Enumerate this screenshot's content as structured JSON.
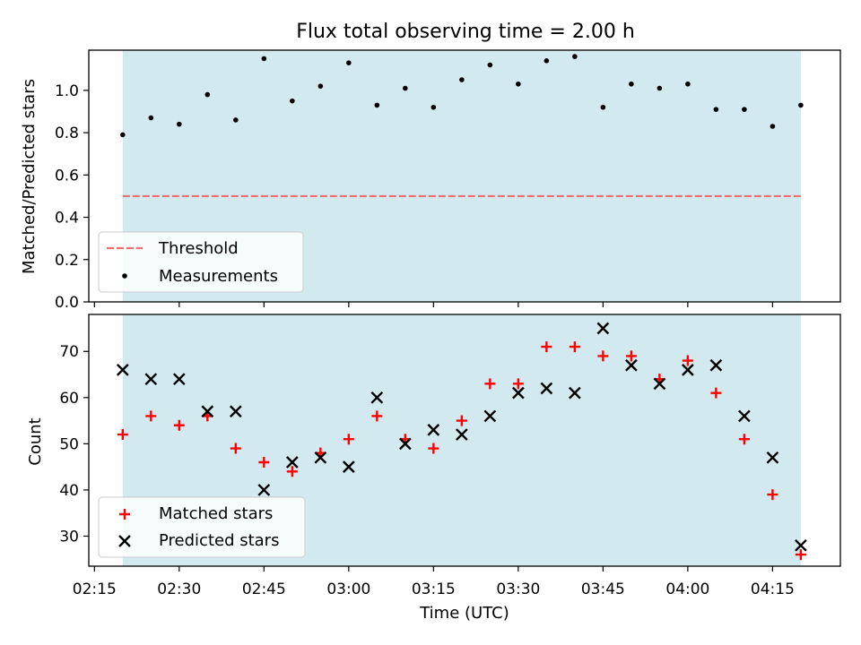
{
  "title": "Flux total observing time = 2.00 h",
  "colors": {
    "shade": "#d3e9f0",
    "threshold": "#f07070",
    "measurement": "#000000",
    "matched": "#ff0000",
    "predicted": "#000000"
  },
  "chart_data": [
    {
      "type": "scatter",
      "ylabel": "Matched/Predicted stars",
      "ylim": [
        0,
        1.19
      ],
      "yticks": [
        "0.0",
        "0.2",
        "0.4",
        "0.6",
        "0.8",
        "1.0"
      ],
      "shaded_range": [
        "02:20",
        "04:20"
      ],
      "threshold": {
        "name": "Threshold",
        "value": 0.5,
        "x": [
          "02:20",
          "04:20"
        ]
      },
      "series": [
        {
          "name": "Measurements",
          "x": [
            "02:20",
            "02:25",
            "02:30",
            "02:35",
            "02:40",
            "02:45",
            "02:50",
            "02:55",
            "03:00",
            "03:05",
            "03:10",
            "03:15",
            "03:20",
            "03:25",
            "03:30",
            "03:35",
            "03:40",
            "03:45",
            "03:50",
            "03:55",
            "04:00",
            "04:05",
            "04:10",
            "04:15",
            "04:20"
          ],
          "y": [
            0.79,
            0.87,
            0.84,
            0.98,
            0.86,
            1.15,
            0.95,
            1.02,
            1.13,
            0.93,
            1.01,
            0.92,
            1.05,
            1.12,
            1.03,
            1.14,
            1.16,
            0.92,
            1.03,
            1.01,
            1.03,
            0.91,
            0.91,
            0.83,
            0.93
          ]
        }
      ],
      "legend": "lower-left",
      "grid": false
    },
    {
      "type": "scatter",
      "xlabel": "Time (UTC)",
      "ylabel": "Count",
      "ylim": [
        23.5,
        78
      ],
      "yticks": [
        "30",
        "40",
        "50",
        "60",
        "70"
      ],
      "xticks": [
        "02:15",
        "02:30",
        "02:45",
        "03:00",
        "03:15",
        "03:30",
        "03:45",
        "04:00",
        "04:15"
      ],
      "xlim": [
        "02:14",
        "04:27"
      ],
      "shaded_range": [
        "02:20",
        "04:20"
      ],
      "series": [
        {
          "name": "Matched stars",
          "x": [
            "02:20",
            "02:25",
            "02:30",
            "02:35",
            "02:40",
            "02:45",
            "02:50",
            "02:55",
            "03:00",
            "03:05",
            "03:10",
            "03:15",
            "03:20",
            "03:25",
            "03:30",
            "03:35",
            "03:40",
            "03:45",
            "03:50",
            "03:55",
            "04:00",
            "04:05",
            "04:10",
            "04:15",
            "04:20"
          ],
          "y": [
            52,
            56,
            54,
            56,
            49,
            46,
            44,
            48,
            51,
            56,
            51,
            49,
            55,
            63,
            63,
            71,
            71,
            69,
            69,
            64,
            68,
            61,
            51,
            39,
            26
          ]
        },
        {
          "name": "Predicted stars",
          "x": [
            "02:20",
            "02:25",
            "02:30",
            "02:35",
            "02:40",
            "02:45",
            "02:50",
            "02:55",
            "03:00",
            "03:05",
            "03:10",
            "03:15",
            "03:20",
            "03:25",
            "03:30",
            "03:35",
            "03:40",
            "03:45",
            "03:50",
            "03:55",
            "04:00",
            "04:05",
            "04:10",
            "04:15",
            "04:20"
          ],
          "y": [
            66,
            64,
            64,
            57,
            57,
            40,
            46,
            47,
            45,
            60,
            50,
            53,
            52,
            56,
            61,
            62,
            61,
            75,
            67,
            63,
            66,
            67,
            56,
            47,
            28
          ]
        }
      ],
      "legend": "lower-left",
      "grid": false
    }
  ]
}
